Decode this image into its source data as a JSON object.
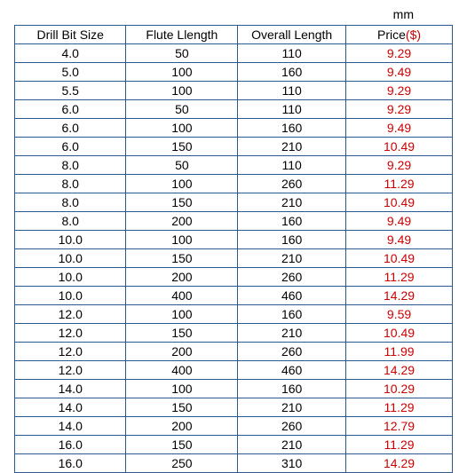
{
  "unit": "mm",
  "columns": {
    "size": "Drill Bit Size",
    "flute": "Flute Llength",
    "overall": "Overall Length",
    "price_label": "Price",
    "price_currency": "($)"
  },
  "rows": [
    {
      "size": "4.0",
      "flute": "50",
      "overall": "110",
      "price": "9.29"
    },
    {
      "size": "5.0",
      "flute": "100",
      "overall": "160",
      "price": "9.49"
    },
    {
      "size": "5.5",
      "flute": "100",
      "overall": "110",
      "price": "9.29"
    },
    {
      "size": "6.0",
      "flute": "50",
      "overall": "110",
      "price": "9.29"
    },
    {
      "size": "6.0",
      "flute": "100",
      "overall": "160",
      "price": "9.49"
    },
    {
      "size": "6.0",
      "flute": "150",
      "overall": "210",
      "price": "10.49"
    },
    {
      "size": "8.0",
      "flute": "50",
      "overall": "110",
      "price": "9.29"
    },
    {
      "size": "8.0",
      "flute": "100",
      "overall": "260",
      "price": "11.29"
    },
    {
      "size": "8.0",
      "flute": "150",
      "overall": "210",
      "price": "10.49"
    },
    {
      "size": "8.0",
      "flute": "200",
      "overall": "160",
      "price": "9.49"
    },
    {
      "size": "10.0",
      "flute": "100",
      "overall": "160",
      "price": "9.49"
    },
    {
      "size": "10.0",
      "flute": "150",
      "overall": "210",
      "price": "10.49"
    },
    {
      "size": "10.0",
      "flute": "200",
      "overall": "260",
      "price": "11.29"
    },
    {
      "size": "10.0",
      "flute": "400",
      "overall": "460",
      "price": "14.29"
    },
    {
      "size": "12.0",
      "flute": "100",
      "overall": "160",
      "price": "9.59"
    },
    {
      "size": "12.0",
      "flute": "150",
      "overall": "210",
      "price": "10.49"
    },
    {
      "size": "12.0",
      "flute": "200",
      "overall": "260",
      "price": "11.99"
    },
    {
      "size": "12.0",
      "flute": "400",
      "overall": "460",
      "price": "14.29"
    },
    {
      "size": "14.0",
      "flute": "100",
      "overall": "160",
      "price": "10.29"
    },
    {
      "size": "14.0",
      "flute": "150",
      "overall": "210",
      "price": "11.29"
    },
    {
      "size": "14.0",
      "flute": "200",
      "overall": "260",
      "price": "12.79"
    },
    {
      "size": "16.0",
      "flute": "150",
      "overall": "210",
      "price": "11.29"
    },
    {
      "size": "16.0",
      "flute": "250",
      "overall": "310",
      "price": "14.29"
    }
  ],
  "styles": {
    "border_color": "#2d5a8e",
    "price_color": "#cc0000",
    "text_color": "#000000",
    "background_color": "#ffffff",
    "font_size": 14
  }
}
